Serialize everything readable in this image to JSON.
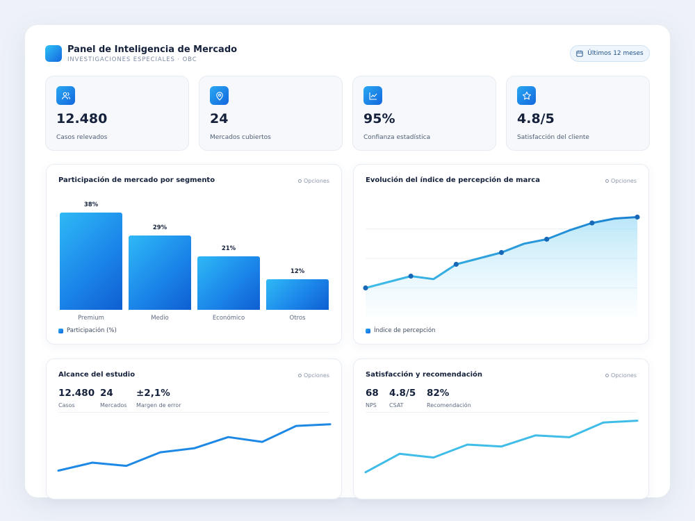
{
  "header": {
    "title": "Panel de Inteligencia de Mercado",
    "subtitle": "INVESTIGACIONES ESPECIALES · OBC",
    "period_label": "Últimos 12 meses"
  },
  "kpis": [
    {
      "value": "12.480",
      "label": "Casos relevados",
      "icon": "users-icon"
    },
    {
      "value": "24",
      "label": "Mercados cubiertos",
      "icon": "location-pin-icon"
    },
    {
      "value": "95%",
      "label": "Confianza estadística",
      "icon": "chart-line-icon"
    },
    {
      "value": "4.8/5",
      "label": "Satisfacción del cliente",
      "icon": "star-icon"
    }
  ],
  "options_label": "Opciones",
  "share_card": {
    "title": "Participación de mercado por segmento",
    "legend": "Participación (%)"
  },
  "brand_card": {
    "title": "Evolución del índice de percepción de marca",
    "legend": "Índice de percepción"
  },
  "scope_card": {
    "title": "Alcance del estudio",
    "stats": [
      {
        "value": "12.480",
        "label": "Casos"
      },
      {
        "value": "24",
        "label": "Mercados"
      },
      {
        "value": "±2,1%",
        "label": "Margen de error"
      }
    ]
  },
  "satisfaction_card": {
    "title": "Satisfacción y recomendación",
    "stats": [
      {
        "value": "68",
        "label": "NPS"
      },
      {
        "value": "4.8/5",
        "label": "CSAT"
      },
      {
        "value": "82%",
        "label": "Recomendación"
      }
    ]
  },
  "colors": {
    "accent_start": "#2ec3f5",
    "accent_end": "#1466e0",
    "line_dark": "#1a7fd0",
    "line_light": "#3fbde8"
  },
  "chart_data": [
    {
      "type": "bar",
      "title": "Participación de mercado por segmento",
      "categories": [
        "Premium",
        "Medio",
        "Económico",
        "Otros"
      ],
      "values": [
        38,
        29,
        21,
        12
      ],
      "value_labels": [
        "38%",
        "29%",
        "21%",
        "12%"
      ],
      "series": [
        {
          "name": "Participación (%)",
          "values": [
            38,
            29,
            21,
            12
          ]
        }
      ],
      "ylim": [
        0,
        38
      ],
      "legend": "bottom-left"
    },
    {
      "type": "area",
      "title": "Evolución del índice de percepción de marca",
      "x": [
        1,
        2,
        3,
        4,
        5,
        6,
        7,
        8,
        9,
        10,
        11,
        12,
        13
      ],
      "series": [
        {
          "name": "Índice de percepción",
          "values": [
            20,
            24,
            28,
            26,
            36,
            40,
            44,
            50,
            53,
            59,
            64,
            67,
            68
          ]
        }
      ],
      "markers_at": [
        0,
        2,
        4,
        6,
        8,
        10,
        12
      ],
      "ylim": [
        0,
        80
      ],
      "grid": true,
      "legend": "bottom-left"
    },
    {
      "type": "line",
      "title": "Alcance del estudio",
      "x": [
        1,
        2,
        3,
        4,
        5,
        6,
        7,
        8,
        9
      ],
      "series": [
        {
          "values": [
            10,
            20,
            16,
            33,
            38,
            52,
            46,
            66,
            68
          ]
        }
      ],
      "ylim": [
        0,
        80
      ],
      "grid": false
    },
    {
      "type": "line",
      "title": "Satisfacción y recomendación",
      "x": [
        1,
        2,
        3,
        4,
        5,
        6,
        7,
        8,
        9
      ],
      "series": [
        {
          "values": [
            10,
            30,
            26,
            40,
            38,
            50,
            48,
            64,
            66
          ]
        }
      ],
      "ylim": [
        0,
        80
      ],
      "grid": false
    }
  ]
}
